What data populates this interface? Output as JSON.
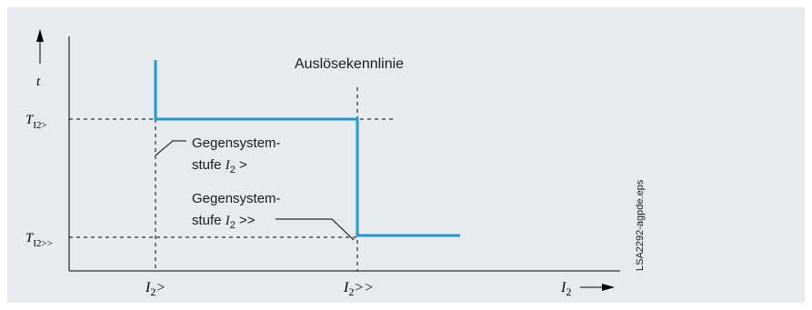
{
  "diagram": {
    "title": "Auslösekennlinie",
    "y_axis_label": "t",
    "x_axis_label_main": "I",
    "x_axis_label_sub": "2",
    "y_ticks": [
      {
        "main": "T",
        "sub": "I2>"
      },
      {
        "main": "T",
        "sub": "I2>>"
      }
    ],
    "x_ticks": [
      {
        "main": "I",
        "sub": "2",
        "suffix": ">"
      },
      {
        "main": "I",
        "sub": "2",
        "suffix": ">>"
      }
    ],
    "annotation_1": {
      "line1": "Gegensystem-",
      "line2_prefix": "stufe ",
      "line2_main": "I",
      "line2_sub": "2",
      "line2_suffix": " >"
    },
    "annotation_2": {
      "line1": "Gegensystem-",
      "line2_prefix": "stufe ",
      "line2_main": "I",
      "line2_sub": "2",
      "line2_suffix": " >>"
    },
    "figure_id": "LSA2292-agpde.eps",
    "curve_color": "#1e9bd7"
  }
}
